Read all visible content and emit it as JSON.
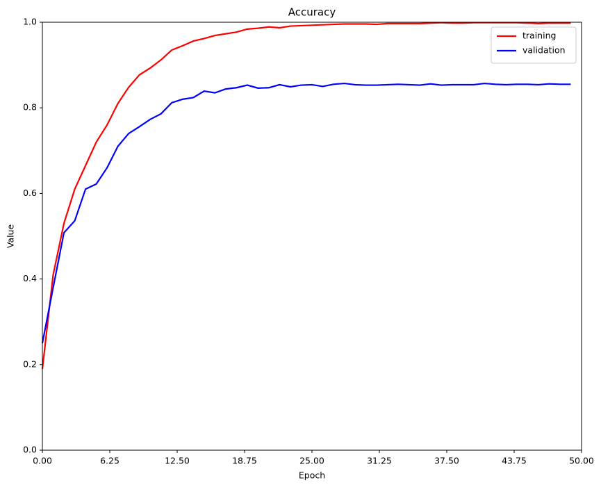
{
  "chart_data": {
    "type": "line",
    "title": "Accuracy",
    "xlabel": "Epoch",
    "ylabel": "Value",
    "x": [
      0,
      1,
      2,
      3,
      4,
      5,
      6,
      7,
      8,
      9,
      10,
      11,
      12,
      13,
      14,
      15,
      16,
      17,
      18,
      19,
      20,
      21,
      22,
      23,
      24,
      25,
      26,
      27,
      28,
      29,
      30,
      31,
      32,
      33,
      34,
      35,
      36,
      37,
      38,
      39,
      40,
      41,
      42,
      43,
      44,
      45,
      46,
      47,
      48,
      49
    ],
    "series": [
      {
        "name": "training",
        "color": "#ff0000",
        "values": [
          0.19,
          0.41,
          0.53,
          0.61,
          0.665,
          0.72,
          0.76,
          0.81,
          0.848,
          0.877,
          0.893,
          0.912,
          0.935,
          0.945,
          0.956,
          0.962,
          0.969,
          0.973,
          0.977,
          0.984,
          0.986,
          0.989,
          0.987,
          0.991,
          0.992,
          0.993,
          0.994,
          0.995,
          0.996,
          0.996,
          0.996,
          0.995,
          0.997,
          0.997,
          0.997,
          0.997,
          0.998,
          0.999,
          0.998,
          0.998,
          0.999,
          0.999,
          0.999,
          0.999,
          0.999,
          0.998,
          0.997,
          0.998,
          0.998,
          0.998
        ]
      },
      {
        "name": "validation",
        "color": "#0000ff",
        "values": [
          0.25,
          0.38,
          0.508,
          0.536,
          0.61,
          0.622,
          0.66,
          0.71,
          0.74,
          0.756,
          0.773,
          0.786,
          0.812,
          0.82,
          0.824,
          0.839,
          0.835,
          0.844,
          0.847,
          0.853,
          0.846,
          0.847,
          0.854,
          0.849,
          0.853,
          0.854,
          0.85,
          0.855,
          0.857,
          0.854,
          0.853,
          0.853,
          0.854,
          0.855,
          0.854,
          0.853,
          0.856,
          0.853,
          0.854,
          0.854,
          0.854,
          0.857,
          0.855,
          0.854,
          0.855,
          0.855,
          0.854,
          0.856,
          0.855,
          0.855
        ]
      }
    ],
    "xlim": [
      0,
      50
    ],
    "ylim": [
      0,
      1
    ],
    "xticks": [
      {
        "value": 0,
        "label": "0.00"
      },
      {
        "value": 6.25,
        "label": "6.25"
      },
      {
        "value": 12.5,
        "label": "12.50"
      },
      {
        "value": 18.75,
        "label": "18.75"
      },
      {
        "value": 25,
        "label": "25.00"
      },
      {
        "value": 31.25,
        "label": "31.25"
      },
      {
        "value": 37.5,
        "label": "37.50"
      },
      {
        "value": 43.75,
        "label": "43.75"
      },
      {
        "value": 50,
        "label": "50.00"
      }
    ],
    "yticks": [
      {
        "value": 0,
        "label": "0.0"
      },
      0.2,
      0.4,
      0.6,
      0.8,
      {
        "value": 1,
        "label": "1.0"
      }
    ],
    "legend": "upper right"
  }
}
